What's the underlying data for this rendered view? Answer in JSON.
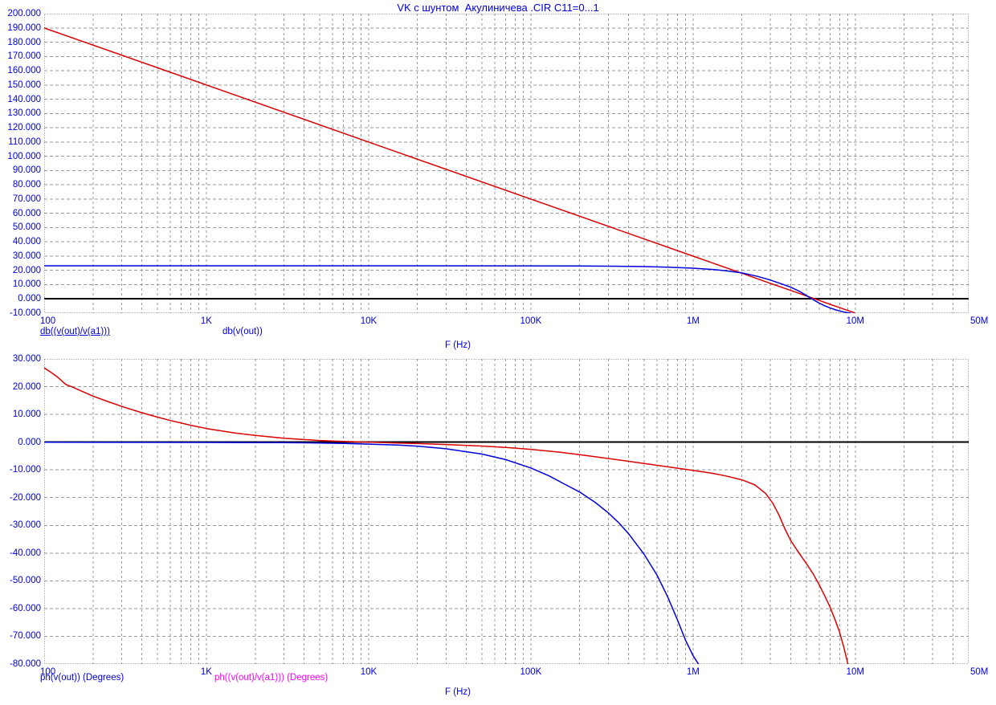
{
  "window": {
    "title": "VK с шунтом  Акулиничева .CIR C11=0...1"
  },
  "colors": {
    "text_blue": "#0000dd",
    "grid_gray": "#9a9a9a",
    "border_gray": "#8a8a8a",
    "zero_line_black": "#000000",
    "curve_red": "#dd0000",
    "curve_blue": "#0000dd",
    "label_magenta": "#ff00ff",
    "background": "#ffffff"
  },
  "chart_data": [
    {
      "type": "line",
      "title": "VK с шунтом  Акулиничева .CIR C11=0...1",
      "xlabel": "F (Hz)",
      "ylabel": "",
      "x_scale": "log",
      "xlim": [
        100,
        50000000
      ],
      "ylim": [
        -10,
        200
      ],
      "ytick_step": 10,
      "ytick_format_decimals": 3,
      "grid": "dashed",
      "zero_line": 0,
      "xticks": [
        {
          "f": 100,
          "label": "100",
          "align": "left"
        },
        {
          "f": 1000,
          "label": "1K",
          "align": "center"
        },
        {
          "f": 10000,
          "label": "10K",
          "align": "center"
        },
        {
          "f": 100000,
          "label": "100K",
          "align": "center"
        },
        {
          "f": 1000000,
          "label": "1M",
          "align": "center"
        },
        {
          "f": 10000000,
          "label": "10M",
          "align": "center"
        },
        {
          "f": 50000000,
          "label": "50M",
          "align": "after"
        }
      ],
      "series": [
        {
          "name": "db((v(out)/v(a1)))",
          "color": "#dd0000",
          "label_color": "#0000dd",
          "selected_underline": true,
          "points": [
            [
              100,
              190
            ],
            [
              1000,
              150
            ],
            [
              10000,
              110
            ],
            [
              100000,
              70
            ],
            [
              1000000,
              30
            ],
            [
              2000000,
              17.96
            ],
            [
              3000000,
              10.91
            ],
            [
              4000000,
              5.92
            ],
            [
              5000000,
              2.04
            ],
            [
              6000000,
              -1.13
            ],
            [
              7000000,
              -3.81
            ],
            [
              8000000,
              -6.12
            ],
            [
              9000000,
              -8.17
            ],
            [
              10000000,
              -10
            ]
          ]
        },
        {
          "name": "db(v(out))",
          "color": "#0000dd",
          "label_color": "#0000dd",
          "selected_underline": false,
          "points": [
            [
              100,
              23.2
            ],
            [
              10000,
              23.2
            ],
            [
              100000,
              23.15
            ],
            [
              200000,
              23.05
            ],
            [
              300000,
              22.95
            ],
            [
              500000,
              22.65
            ],
            [
              700000,
              22.25
            ],
            [
              1000000,
              21.55
            ],
            [
              1300000,
              20.7
            ],
            [
              1600000,
              19.7
            ],
            [
              2000000,
              18.2
            ],
            [
              2500000,
              15.8
            ],
            [
              3000000,
              13.2
            ],
            [
              3500000,
              10.6
            ],
            [
              4000000,
              8.2
            ],
            [
              4500000,
              5.4
            ],
            [
              5000000,
              2.4
            ],
            [
              5500000,
              -0.5
            ],
            [
              6000000,
              -3.0
            ],
            [
              6500000,
              -4.9
            ],
            [
              7000000,
              -6.4
            ],
            [
              7500000,
              -7.5
            ],
            [
              8000000,
              -8.4
            ],
            [
              8500000,
              -9.2
            ],
            [
              9000000,
              -9.7
            ],
            [
              9400000,
              -10
            ]
          ]
        }
      ]
    },
    {
      "type": "line",
      "title": "",
      "xlabel": "F (Hz)",
      "ylabel": "",
      "x_scale": "log",
      "xlim": [
        100,
        50000000
      ],
      "ylim": [
        -80,
        30
      ],
      "ytick_step": 10,
      "ytick_format_decimals": 3,
      "grid": "dashed",
      "zero_line": 0,
      "xticks": [
        {
          "f": 100,
          "label": "100",
          "align": "left"
        },
        {
          "f": 1000,
          "label": "1K",
          "align": "center"
        },
        {
          "f": 10000,
          "label": "10K",
          "align": "center"
        },
        {
          "f": 100000,
          "label": "100K",
          "align": "center"
        },
        {
          "f": 1000000,
          "label": "1M",
          "align": "center"
        },
        {
          "f": 10000000,
          "label": "10M",
          "align": "center"
        },
        {
          "f": 50000000,
          "label": "50M",
          "align": "after"
        }
      ],
      "series": [
        {
          "name": "ph(v(out)) (Degrees)",
          "color": "#0000dd",
          "label_color": "#0000dd",
          "selected_underline": false,
          "points": [
            [
              100,
              -0.05
            ],
            [
              1000,
              -0.1
            ],
            [
              2000,
              -0.15
            ],
            [
              3000,
              -0.2
            ],
            [
              5000,
              -0.3
            ],
            [
              7000,
              -0.45
            ],
            [
              10000,
              -0.7
            ],
            [
              15000,
              -1.05
            ],
            [
              20000,
              -1.45
            ],
            [
              30000,
              -2.4
            ],
            [
              50000,
              -4.3
            ],
            [
              70000,
              -6.3
            ],
            [
              100000,
              -9.3
            ],
            [
              130000,
              -12.2
            ],
            [
              160000,
              -15
            ],
            [
              200000,
              -18
            ],
            [
              250000,
              -21.8
            ],
            [
              300000,
              -25.5
            ],
            [
              350000,
              -29.2
            ],
            [
              400000,
              -33
            ],
            [
              500000,
              -40.5
            ],
            [
              600000,
              -48
            ],
            [
              700000,
              -56
            ],
            [
              800000,
              -64
            ],
            [
              900000,
              -71.5
            ],
            [
              1000000,
              -77
            ],
            [
              1080000,
              -80
            ]
          ]
        },
        {
          "name": "ph((v(out)/v(a1))) (Degrees)",
          "color": "#dd0000",
          "label_color": "#ff00ff",
          "selected_underline": false,
          "points": [
            [
              100,
              26.8
            ],
            [
              110,
              25.2
            ],
            [
              120,
              23.6
            ],
            [
              136,
              20.8
            ],
            [
              150,
              19.8
            ],
            [
              170,
              18.4
            ],
            [
              200,
              16.6
            ],
            [
              250,
              14.5
            ],
            [
              300,
              12.9
            ],
            [
              400,
              10.6
            ],
            [
              500,
              9.0
            ],
            [
              600,
              7.8
            ],
            [
              800,
              6.1
            ],
            [
              1000,
              4.9
            ],
            [
              1500,
              3.3
            ],
            [
              2000,
              2.4
            ],
            [
              3000,
              1.4
            ],
            [
              5000,
              0.6
            ],
            [
              7000,
              0.25
            ],
            [
              10000,
              0.0
            ],
            [
              15000,
              -0.3
            ],
            [
              20000,
              -0.5
            ],
            [
              30000,
              -0.85
            ],
            [
              50000,
              -1.4
            ],
            [
              70000,
              -1.9
            ],
            [
              100000,
              -2.6
            ],
            [
              150000,
              -3.6
            ],
            [
              200000,
              -4.5
            ],
            [
              300000,
              -5.9
            ],
            [
              400000,
              -6.9
            ],
            [
              500000,
              -7.7
            ],
            [
              700000,
              -8.9
            ],
            [
              1000000,
              -10.2
            ],
            [
              1300000,
              -11.2
            ],
            [
              1600000,
              -12.2
            ],
            [
              2000000,
              -13.6
            ],
            [
              2400000,
              -15.4
            ],
            [
              2800000,
              -18.5
            ],
            [
              3100000,
              -22
            ],
            [
              3400000,
              -26.5
            ],
            [
              3700000,
              -31.5
            ],
            [
              4000000,
              -35.5
            ],
            [
              4500000,
              -40
            ],
            [
              5000000,
              -43.8
            ],
            [
              5500000,
              -47.5
            ],
            [
              6000000,
              -51.5
            ],
            [
              6500000,
              -55.5
            ],
            [
              7000000,
              -59.5
            ],
            [
              7500000,
              -64
            ],
            [
              8000000,
              -68.5
            ],
            [
              8500000,
              -74
            ],
            [
              8800000,
              -77.5
            ],
            [
              9000000,
              -80
            ]
          ]
        }
      ]
    }
  ]
}
